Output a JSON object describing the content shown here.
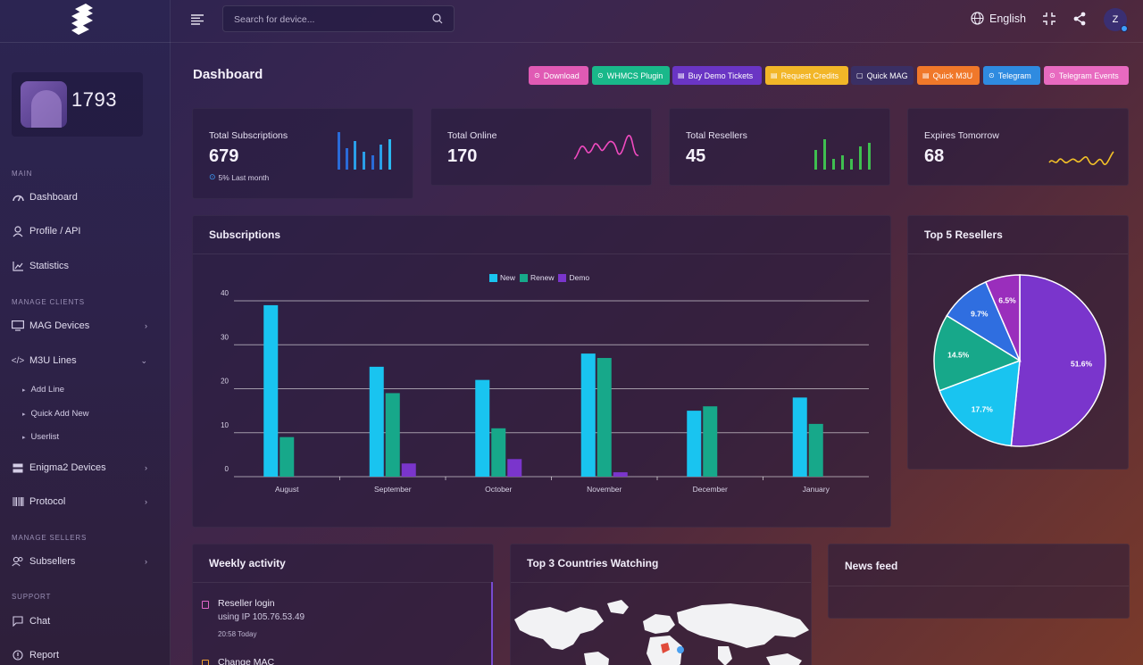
{
  "sidebar": {
    "user_id": "1793",
    "sections": {
      "main": "MAIN",
      "manage_clients": "MANAGE CLIENTS",
      "manage_sellers": "MANAGE SELLERS",
      "support": "SUPPORT"
    },
    "items": {
      "dashboard": "Dashboard",
      "profile": "Profile / API",
      "statistics": "Statistics",
      "mag_devices": "MAG Devices",
      "m3u_lines": "M3U Lines",
      "add_line": "Add Line",
      "quick_add_new": "Quick Add New",
      "userlist": "Userlist",
      "enigma2_devices": "Enigma2 Devices",
      "protocol": "Protocol",
      "subsellers": "Subsellers",
      "chat": "Chat",
      "report": "Report"
    }
  },
  "topbar": {
    "search_placeholder": "Search for device...",
    "language": "English",
    "avatar_initial": "Z"
  },
  "page": {
    "title": "Dashboard",
    "actions": [
      {
        "label": "Download",
        "color": "#e05ab4"
      },
      {
        "label": "WHMCS Plugin",
        "color": "#19b88a"
      },
      {
        "label": "Buy Demo Tickets",
        "color": "#6a35c4"
      },
      {
        "label": "Request Credits",
        "color": "#f2b628"
      },
      {
        "label": "Quick MAG",
        "color": "#3a2f64"
      },
      {
        "label": "Quick M3U",
        "color": "#f0782a"
      },
      {
        "label": "Telegram",
        "color": "#2f8be0"
      },
      {
        "label": "Telegram Events",
        "color": "#e86ac0"
      }
    ]
  },
  "stats": {
    "total_subscriptions": {
      "label": "Total Subscriptions",
      "value": "679",
      "change": "5%",
      "change_label": "Last month"
    },
    "total_online": {
      "label": "Total Online",
      "value": "170"
    },
    "total_resellers": {
      "label": "Total Resellers",
      "value": "45"
    },
    "expires_tomorrow": {
      "label": "Expires Tomorrow",
      "value": "68"
    }
  },
  "subscriptions_panel": {
    "title": "Subscriptions"
  },
  "top_resellers_panel": {
    "title": "Top 5 Resellers"
  },
  "weekly_activity": {
    "title": "Weekly activity",
    "items": [
      {
        "title": "Reseller login",
        "detail": "using IP 105.76.53.49",
        "time": "20:58 Today"
      },
      {
        "title": "Change MAC"
      }
    ]
  },
  "countries_panel": {
    "title": "Top 3 Countries Watching"
  },
  "news_panel": {
    "title": "News feed"
  },
  "colors": {
    "new": "#19c4f0",
    "renew": "#17a88a",
    "demo": "#7a35cc"
  },
  "chart_data": [
    {
      "type": "bar",
      "categories": [
        "August",
        "September",
        "October",
        "November",
        "December",
        "January"
      ],
      "series": [
        {
          "name": "New",
          "values": [
            39,
            25,
            22,
            28,
            15,
            18
          ]
        },
        {
          "name": "Renew",
          "values": [
            9,
            19,
            11,
            27,
            16,
            12
          ]
        },
        {
          "name": "Demo",
          "values": [
            0,
            3,
            4,
            1,
            0,
            0
          ]
        }
      ],
      "ylim": [
        0,
        40
      ],
      "yticks": [
        0,
        10,
        20,
        30,
        40
      ],
      "grid": true,
      "legend": "top-center"
    },
    {
      "type": "pie",
      "values": [
        51.6,
        17.7,
        14.5,
        9.7,
        6.5
      ],
      "labels": [
        "51.6%",
        "17.7%",
        "14.5%",
        "9.7%",
        "6.5%"
      ],
      "colors": [
        "#7a35cc",
        "#19c4f0",
        "#17a88a",
        "#2f6ee0",
        "#9a2ebc"
      ]
    }
  ]
}
